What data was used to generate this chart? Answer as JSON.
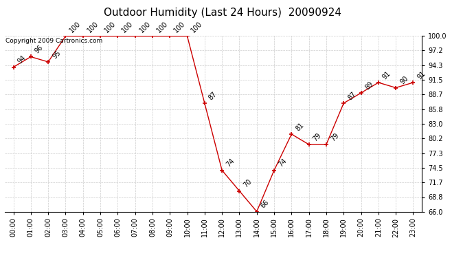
{
  "title": "Outdoor Humidity (Last 24 Hours)  20090924",
  "copyright": "Copyright 2009 Cartronics.com",
  "x_labels": [
    "00:00",
    "01:00",
    "02:00",
    "03:00",
    "04:00",
    "05:00",
    "06:00",
    "07:00",
    "08:00",
    "09:00",
    "10:00",
    "11:00",
    "12:00",
    "13:00",
    "14:00",
    "15:00",
    "16:00",
    "17:00",
    "18:00",
    "19:00",
    "20:00",
    "21:00",
    "22:00",
    "23:00"
  ],
  "y_values": [
    94,
    96,
    95,
    100,
    100,
    100,
    100,
    100,
    100,
    100,
    100,
    87,
    74,
    70,
    66,
    74,
    81,
    79,
    79,
    87,
    89,
    91,
    90,
    91
  ],
  "ylim_min": 66.0,
  "ylim_max": 100.0,
  "yticks": [
    66.0,
    68.8,
    71.7,
    74.5,
    77.3,
    80.2,
    83.0,
    85.8,
    88.7,
    91.5,
    94.3,
    97.2,
    100.0
  ],
  "line_color": "#cc0000",
  "marker_color": "#cc0000",
  "bg_color": "#ffffff",
  "plot_bg_color": "#ffffff",
  "grid_color": "#cccccc",
  "title_fontsize": 11,
  "label_fontsize": 7,
  "tick_fontsize": 7,
  "copyright_fontsize": 6.5
}
